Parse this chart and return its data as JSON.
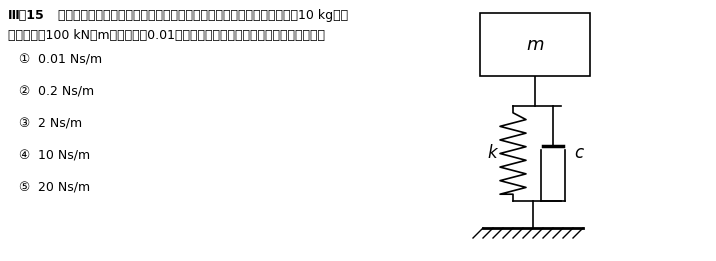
{
  "title_number": "Ⅲ－15",
  "title_line1": "下図のような粘性減衰要素を有する１自由度振動系において，質量ｍが10 kg，ば",
  "title_line2": "ね定数ｋが100 kN／m，減衰比が0.01のとき，減衰係数ｃに最も近い値はどれか。",
  "options": [
    {
      "num": "①",
      "text": "0.01 Ns/m"
    },
    {
      "num": "②",
      "text": "0.2 Ns/m"
    },
    {
      "num": "③",
      "text": "2 Ns/m"
    },
    {
      "num": "④",
      "text": "10 Ns/m"
    },
    {
      "num": "⑤",
      "text": "20 Ns/m"
    }
  ],
  "bg_color": "#ffffff",
  "text_color": "#000000"
}
